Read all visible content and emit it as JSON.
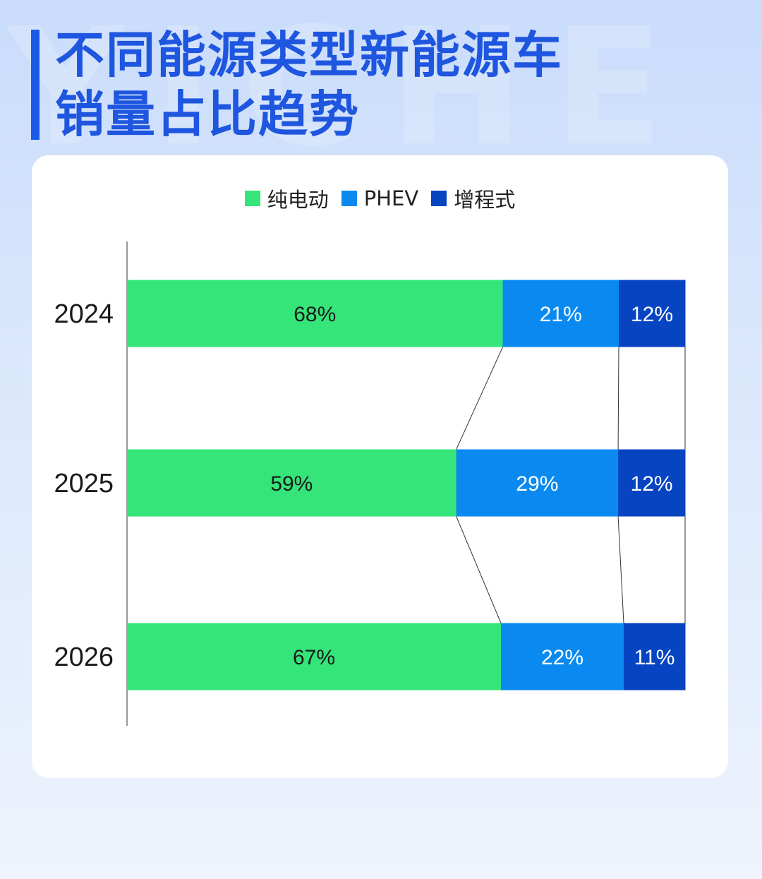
{
  "watermark": "YICHE",
  "title": {
    "line1": "不同能源类型新能源车",
    "line2": "销量占比趋势"
  },
  "legend": [
    {
      "label": "纯电动",
      "color": "#35e57a"
    },
    {
      "label": "PHEV",
      "color": "#0a8af0"
    },
    {
      "label": "增程式",
      "color": "#0744c2"
    }
  ],
  "chart_data": {
    "type": "bar",
    "orientation": "horizontal",
    "stacked": true,
    "categories": [
      "2024",
      "2025",
      "2026"
    ],
    "series": [
      {
        "name": "纯电动",
        "color": "#35e57a",
        "label_color": "#1a1a1a",
        "values": [
          68,
          59,
          67
        ],
        "labels": [
          "68%",
          "59%",
          "67%"
        ]
      },
      {
        "name": "PHEV",
        "color": "#0a8af0",
        "label_color": "#ffffff",
        "values": [
          21,
          29,
          22
        ],
        "labels": [
          "21%",
          "29%",
          "22%"
        ]
      },
      {
        "name": "增程式",
        "color": "#0744c2",
        "label_color": "#ffffff",
        "values": [
          12,
          12,
          11
        ],
        "labels": [
          "12%",
          "12%",
          "11%"
        ]
      }
    ],
    "unit": "%",
    "xlim": [
      0,
      100
    ],
    "series_lines": true,
    "grid": false,
    "legend_position": "top-center"
  }
}
